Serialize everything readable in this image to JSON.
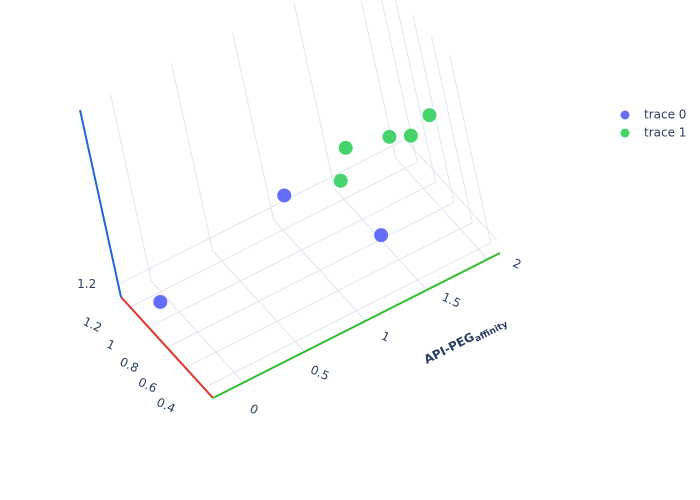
{
  "chart_data": {
    "type": "scatter3d",
    "series": [
      {
        "name": "trace 0",
        "color": "#636efa",
        "x": [
          0.85,
          0.8,
          0.8
        ],
        "y": [
          -0.2,
          0.86,
          1.51
        ],
        "z": [
          1.4,
          1.77,
          1.13
        ]
      },
      {
        "name": "trace 1",
        "color": "#45d36b",
        "x": [
          0.8,
          0.8,
          0.8,
          0.8,
          0.8
        ],
        "y": [
          1.39,
          1.3,
          1.73,
          1.89,
          2.06
        ],
        "z": [
          1.89,
          1.67,
          1.81,
          1.74,
          1.82
        ]
      }
    ],
    "xlim": [
      0.3,
      1.3
    ],
    "xticks": [
      0.4,
      0.6,
      0.8,
      1,
      1.2
    ],
    "xcolor": "#e0342b",
    "ylim": [
      -0.25,
      2.1
    ],
    "yticks": [
      0,
      0.5,
      1,
      1.5,
      2
    ],
    "ycolor": "#2fbf2f",
    "y_label": {
      "text": "API-PEG",
      "subscript": "affinity"
    },
    "zlim": [
      1.1,
      2.6
    ],
    "zticks": [
      1.2
    ],
    "zcolor": "#1f66e0",
    "grid": true
  }
}
